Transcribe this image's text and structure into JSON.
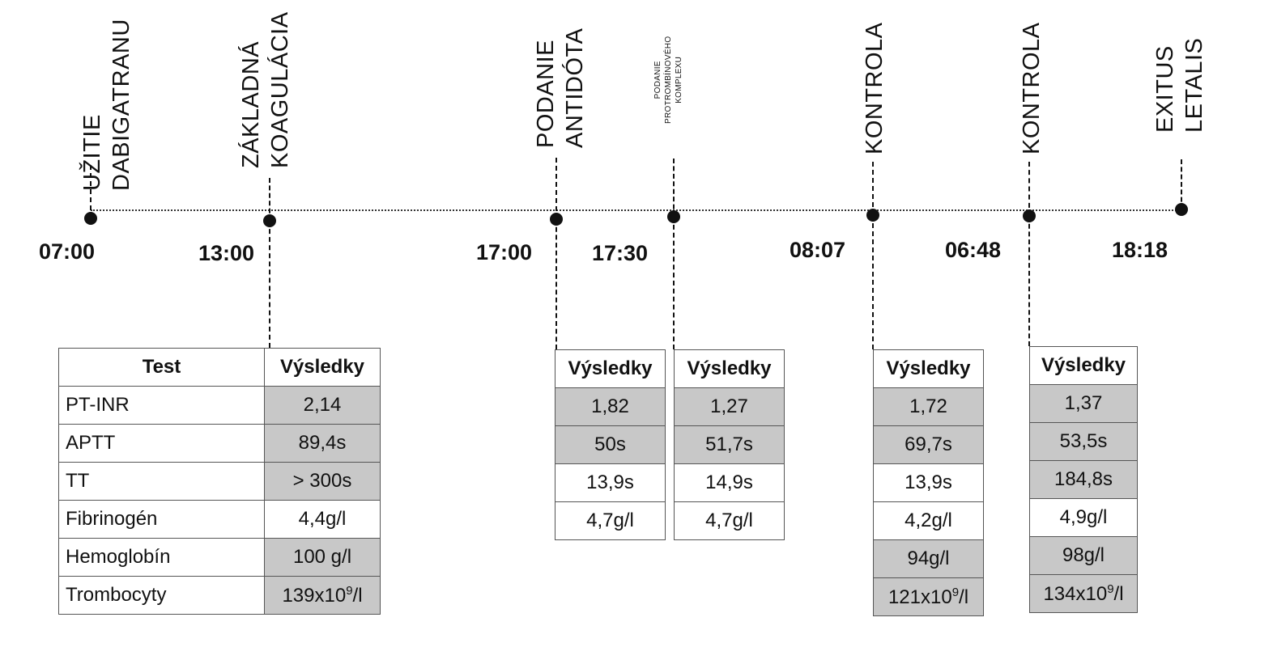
{
  "events": [
    {
      "lines": [
        "UŽITIE",
        "DABIGATRANU"
      ],
      "time": "07:00"
    },
    {
      "lines": [
        "ZÁKLADNÁ",
        "KOAGULÁCIA"
      ],
      "time": "13:00"
    },
    {
      "lines": [
        "PODANIE",
        "ANTIDÓTA"
      ],
      "time": "17:00"
    },
    {
      "lines": [
        "PODANIE",
        "PROTROMBÍNOVÉHO",
        "KOMPLEXU"
      ],
      "time": "17:30"
    },
    {
      "lines": [
        "KONTROLA"
      ],
      "time": "08:07"
    },
    {
      "lines": [
        "KONTROLA"
      ],
      "time": "06:48"
    },
    {
      "lines": [
        "EXITUS",
        "LETALIS"
      ],
      "time": "18:18"
    }
  ],
  "main_table": {
    "header_test": "Test",
    "header_results": "Výsledky",
    "rows": [
      {
        "test": "PT-INR",
        "value": "2,14",
        "highlight": true
      },
      {
        "test": "APTT",
        "value": "89,4s",
        "highlight": true
      },
      {
        "test": "TT",
        "value": "> 300s",
        "highlight": true
      },
      {
        "test": "Fibrinogén",
        "value": "4,4g/l",
        "highlight": false
      },
      {
        "test": "Hemoglobín",
        "value": "100 g/l",
        "highlight": true
      },
      {
        "test": "Trombocyty",
        "value": "139x10",
        "sup": "9",
        "suffix": "/l",
        "highlight": true
      }
    ]
  },
  "result_tables": [
    {
      "header": "Výsledky",
      "rows": [
        {
          "value": "1,82",
          "highlight": true
        },
        {
          "value": "50s",
          "highlight": true
        },
        {
          "value": "13,9s",
          "highlight": false
        },
        {
          "value": "4,7g/l",
          "highlight": false
        }
      ]
    },
    {
      "header": "Výsledky",
      "rows": [
        {
          "value": "1,27",
          "highlight": true
        },
        {
          "value": "51,7s",
          "highlight": true
        },
        {
          "value": "14,9s",
          "highlight": false
        },
        {
          "value": "4,7g/l",
          "highlight": false
        }
      ]
    },
    {
      "header": "Výsledky",
      "rows": [
        {
          "value": "1,72",
          "highlight": true
        },
        {
          "value": "69,7s",
          "highlight": true
        },
        {
          "value": "13,9s",
          "highlight": false
        },
        {
          "value": "4,2g/l",
          "highlight": false
        },
        {
          "value": "94g/l",
          "highlight": true
        },
        {
          "value": "121x10",
          "sup": "9",
          "suffix": "/l",
          "highlight": true
        }
      ]
    },
    {
      "header": "Výsledky",
      "rows": [
        {
          "value": "1,37",
          "highlight": true
        },
        {
          "value": "53,5s",
          "highlight": true
        },
        {
          "value": "184,8s",
          "highlight": true
        },
        {
          "value": "4,9g/l",
          "highlight": false
        },
        {
          "value": "98g/l",
          "highlight": true
        },
        {
          "value": "134x10",
          "sup": "9",
          "suffix": "/l",
          "highlight": true
        }
      ]
    }
  ],
  "colors": {
    "highlight_cell": "#c8c8c8",
    "ink": "#111111"
  }
}
